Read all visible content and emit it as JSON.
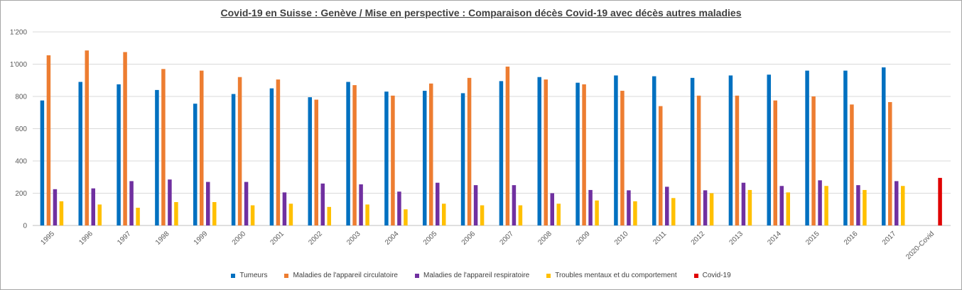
{
  "chart_data": {
    "type": "bar",
    "title": "Covid-19 en Suisse : Genève / Mise en perspective : Comparaison décès Covid-19 avec décès autres maladies",
    "xlabel": "",
    "ylabel": "",
    "ylim": [
      0,
      1200
    ],
    "yticks": [
      "0",
      "200",
      "400",
      "600",
      "800",
      "1'000",
      "1'200"
    ],
    "ytick_values": [
      0,
      200,
      400,
      600,
      800,
      1000,
      1200
    ],
    "grid": true,
    "legend_position": "bottom",
    "categories": [
      "1995",
      "1996",
      "1997",
      "1998",
      "1999",
      "2000",
      "2001",
      "2002",
      "2003",
      "2004",
      "2005",
      "2006",
      "2007",
      "2008",
      "2009",
      "2010",
      "2011",
      "2012",
      "2013",
      "2014",
      "2015",
      "2016",
      "2017",
      "2020-Covid"
    ],
    "series": [
      {
        "name": "Tumeurs",
        "color": "#0070c0",
        "values": [
          775,
          890,
          875,
          840,
          755,
          815,
          850,
          795,
          890,
          830,
          835,
          820,
          895,
          920,
          885,
          930,
          925,
          915,
          930,
          935,
          960,
          960,
          980,
          null
        ]
      },
      {
        "name": "Maladies de l'appareil circulatoire",
        "color": "#ed7d31",
        "values": [
          1055,
          1085,
          1075,
          970,
          960,
          920,
          905,
          780,
          870,
          805,
          880,
          915,
          985,
          905,
          875,
          835,
          740,
          805,
          805,
          775,
          800,
          750,
          765,
          null
        ]
      },
      {
        "name": "Maladies de l'appareil respiratoire",
        "color": "#7030a0",
        "values": [
          225,
          230,
          275,
          285,
          270,
          270,
          205,
          260,
          255,
          210,
          265,
          250,
          250,
          200,
          220,
          218,
          240,
          218,
          265,
          245,
          280,
          250,
          275,
          null
        ]
      },
      {
        "name": "Troubles mentaux et du comportement",
        "color": "#ffc000",
        "values": [
          150,
          130,
          110,
          145,
          145,
          125,
          135,
          115,
          130,
          100,
          135,
          125,
          125,
          135,
          155,
          150,
          170,
          200,
          220,
          205,
          245,
          220,
          245,
          null
        ]
      },
      {
        "name": "Covid-19",
        "color": "#e00000",
        "values": [
          null,
          null,
          null,
          null,
          null,
          null,
          null,
          null,
          null,
          null,
          null,
          null,
          null,
          null,
          null,
          null,
          null,
          null,
          null,
          null,
          null,
          null,
          null,
          295
        ]
      }
    ]
  }
}
